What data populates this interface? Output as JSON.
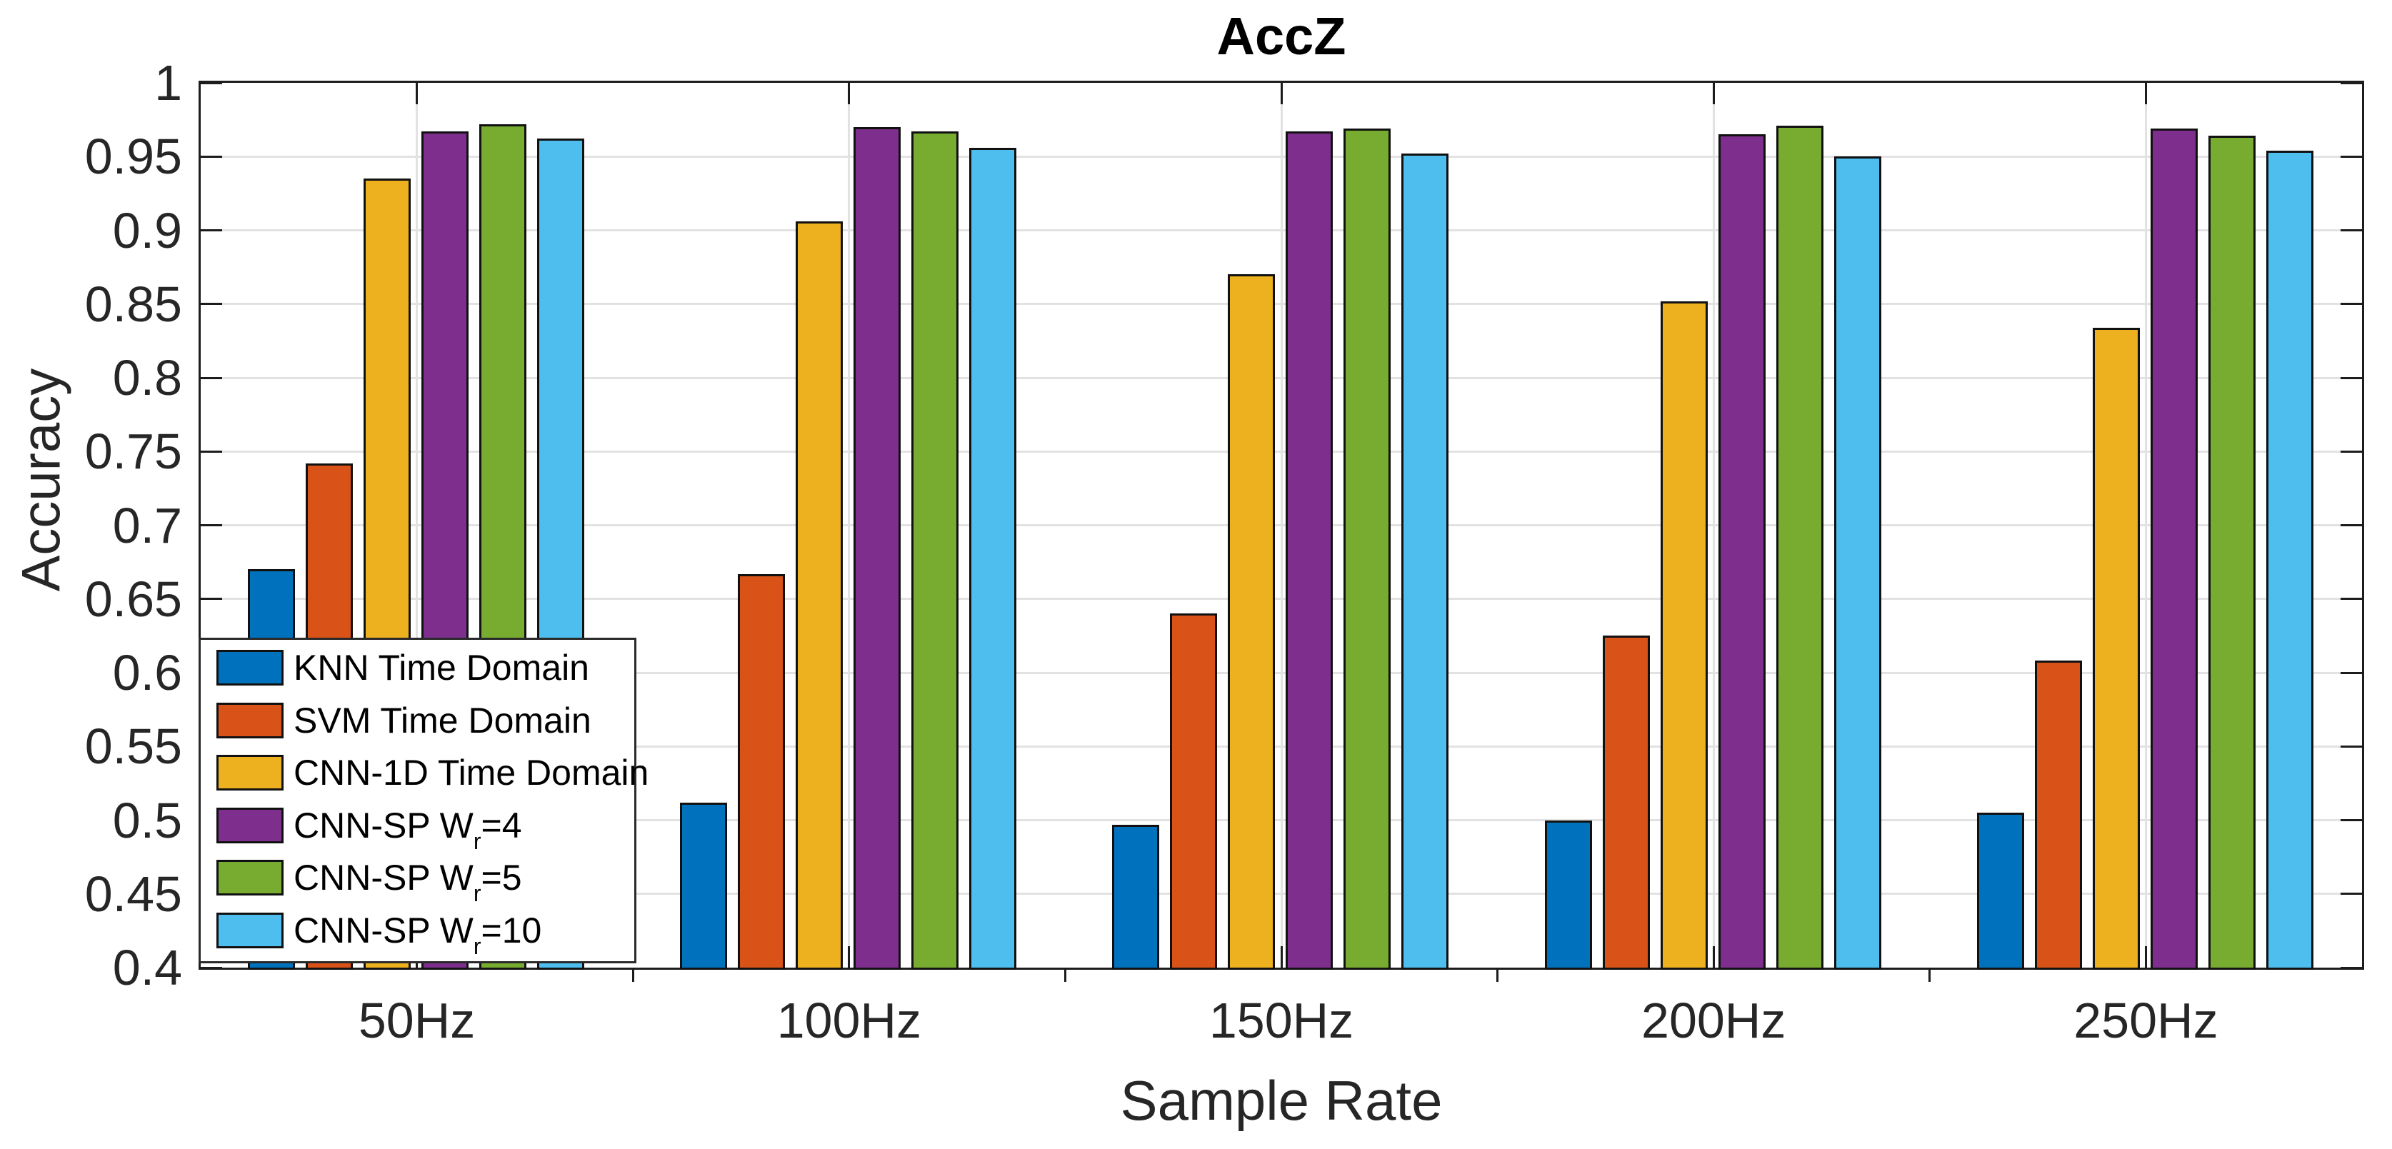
{
  "chart_data": {
    "type": "bar",
    "title": "AccZ",
    "xlabel": "Sample Rate",
    "ylabel": "Accuracy",
    "categories": [
      "50Hz",
      "100Hz",
      "150Hz",
      "200Hz",
      "250Hz"
    ],
    "series": [
      {
        "name": "KNN Time Domain",
        "color": "#0072BD",
        "values": [
          0.67,
          0.512,
          0.497,
          0.5,
          0.505
        ]
      },
      {
        "name": "SVM Time Domain",
        "color": "#D95319",
        "values": [
          0.742,
          0.667,
          0.64,
          0.625,
          0.608
        ]
      },
      {
        "name": "CNN-1D Time Domain",
        "color": "#EDB120",
        "values": [
          0.935,
          0.906,
          0.87,
          0.852,
          0.834
        ]
      },
      {
        "name": "CNN-SP W_r=4",
        "color": "#7E2F8E",
        "values": [
          0.967,
          0.97,
          0.967,
          0.965,
          0.969
        ]
      },
      {
        "name": "CNN-SP W_r=5",
        "color": "#77AC30",
        "values": [
          0.972,
          0.967,
          0.969,
          0.971,
          0.964
        ]
      },
      {
        "name": "CNN-SP W_r=10",
        "color": "#4DBEEE",
        "values": [
          0.962,
          0.956,
          0.952,
          0.95,
          0.954
        ]
      }
    ],
    "ylim": [
      0.4,
      1.0
    ],
    "ytick_step": 0.05,
    "ytick_labels": [
      "0.4",
      "0.45",
      "0.5",
      "0.55",
      "0.6",
      "0.65",
      "0.7",
      "0.75",
      "0.8",
      "0.85",
      "0.9",
      "0.95",
      "1"
    ],
    "grid": "on",
    "legend_position": "bottom-left",
    "axis_color": "#1c1c1c",
    "grid_color": "#e2e2e2"
  }
}
